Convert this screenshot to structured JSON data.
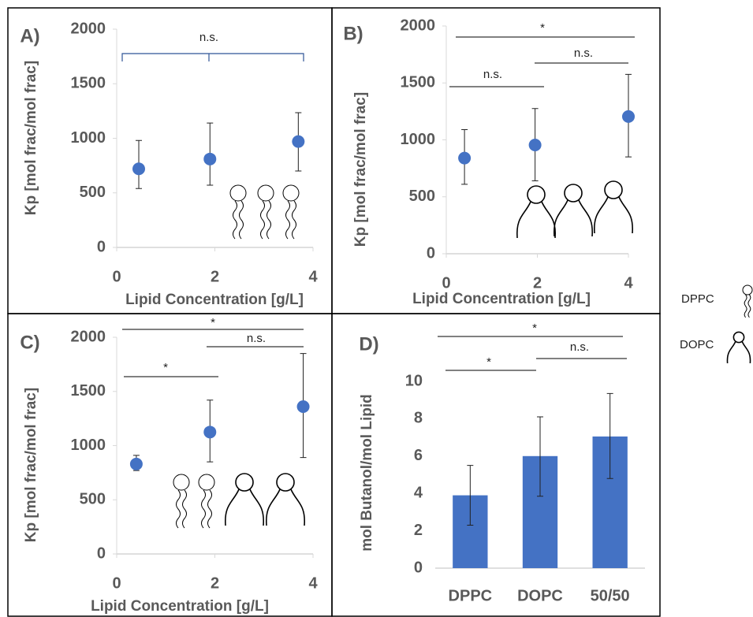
{
  "chart_data": [
    {
      "type": "scatter",
      "panel_label": "A)",
      "y_label": "Kp [mol frac/mol frac]",
      "x_label": "Lipid Concentration  [g/L]",
      "x": [
        0.45,
        1.9,
        3.7
      ],
      "values": [
        720,
        810,
        970
      ],
      "err_minus": [
        180,
        240,
        270
      ],
      "err_plus": [
        260,
        330,
        265
      ],
      "color": "#4472c4",
      "xlim": [
        0,
        4
      ],
      "ylim": [
        0,
        2000
      ],
      "xticks": [
        0,
        2,
        4
      ],
      "yticks": [
        0,
        500,
        1000,
        1500,
        2000
      ],
      "annotations": [
        "n.s."
      ]
    },
    {
      "type": "scatter",
      "panel_label": "B)",
      "y_label": "Kp [mol frac/mol frac]",
      "x_label": "Lipid Concentration  [g/L]",
      "x": [
        0.4,
        1.95,
        4.0
      ],
      "values": [
        840,
        955,
        1205
      ],
      "err_minus": [
        230,
        315,
        355
      ],
      "err_plus": [
        250,
        320,
        370
      ],
      "color": "#4472c4",
      "xlim": [
        0,
        4
      ],
      "ylim": [
        0,
        2000
      ],
      "xticks": [
        0,
        2,
        4
      ],
      "yticks": [
        0,
        500,
        1000,
        1500,
        2000
      ],
      "annotations": [
        "*",
        "n.s.",
        "n.s."
      ]
    },
    {
      "type": "scatter",
      "panel_label": "C)",
      "y_label": "Kp [mol frac/mol frac]",
      "x_label": "Lipid Concentration  [g/L]",
      "x": [
        0.4,
        1.9,
        3.8
      ],
      "values": [
        830,
        1125,
        1360
      ],
      "err_minus": [
        60,
        275,
        470
      ],
      "err_plus": [
        80,
        295,
        490
      ],
      "color": "#4472c4",
      "xlim": [
        0,
        4
      ],
      "ylim": [
        0,
        2000
      ],
      "xticks": [
        0,
        2,
        4
      ],
      "yticks": [
        0,
        500,
        1000,
        1500,
        2000
      ],
      "annotations": [
        "*",
        "n.s.",
        "*"
      ]
    },
    {
      "type": "bar",
      "panel_label": "D)",
      "y_label": "mol Butanol/mol Lipid",
      "categories": [
        "DPPC",
        "DOPC",
        "50/50"
      ],
      "values": [
        3.9,
        6.0,
        7.05
      ],
      "err_minus": [
        1.6,
        2.15,
        2.25
      ],
      "err_plus": [
        1.6,
        2.1,
        2.3
      ],
      "color": "#4472c4",
      "ylim": [
        0,
        10
      ],
      "yticks": [
        0,
        2,
        4,
        6,
        8,
        10
      ],
      "annotations": [
        "*",
        "n.s.",
        "*"
      ]
    }
  ],
  "legend": [
    "DPPC",
    "DOPC"
  ]
}
